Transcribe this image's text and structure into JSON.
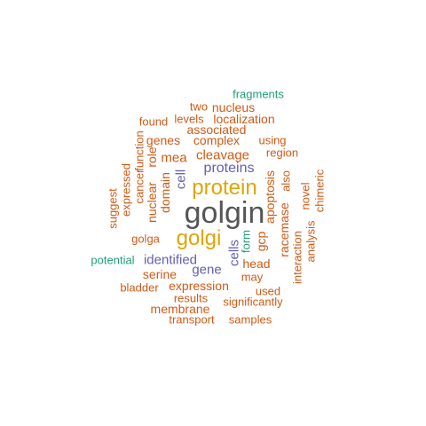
{
  "palette": {
    "gray": "#555555",
    "gold": "#E0A500",
    "purple": "#6360AE",
    "orange": "#D05A14",
    "green": "#1E9E78"
  },
  "words": [
    {
      "text": "golgin",
      "color": "gray"
    },
    {
      "text": "protein",
      "color": "gold"
    },
    {
      "text": "golgi",
      "color": "gold"
    },
    {
      "text": "proteins",
      "color": "purple"
    },
    {
      "text": "identified",
      "color": "purple"
    },
    {
      "text": "gene",
      "color": "purple"
    },
    {
      "text": "cells",
      "color": "purple"
    },
    {
      "text": "cell",
      "color": "purple"
    },
    {
      "text": "fragments",
      "color": "green"
    },
    {
      "text": "potential",
      "color": "green"
    },
    {
      "text": "form",
      "color": "green"
    },
    {
      "text": "two",
      "color": "orange"
    },
    {
      "text": "nucleus",
      "color": "orange"
    },
    {
      "text": "levels",
      "color": "orange"
    },
    {
      "text": "localization",
      "color": "orange"
    },
    {
      "text": "found",
      "color": "orange"
    },
    {
      "text": "associated",
      "color": "orange"
    },
    {
      "text": "genes",
      "color": "orange"
    },
    {
      "text": "complex",
      "color": "orange"
    },
    {
      "text": "using",
      "color": "orange"
    },
    {
      "text": "mea",
      "color": "orange"
    },
    {
      "text": "cleavage",
      "color": "orange"
    },
    {
      "text": "region",
      "color": "orange"
    },
    {
      "text": "golga",
      "color": "orange"
    },
    {
      "text": "head",
      "color": "orange"
    },
    {
      "text": "may",
      "color": "orange"
    },
    {
      "text": "serine",
      "color": "orange"
    },
    {
      "text": "expression",
      "color": "orange"
    },
    {
      "text": "bladder",
      "color": "orange"
    },
    {
      "text": "used",
      "color": "orange"
    },
    {
      "text": "results",
      "color": "orange"
    },
    {
      "text": "significantly",
      "color": "orange"
    },
    {
      "text": "membrane",
      "color": "orange"
    },
    {
      "text": "transport",
      "color": "orange"
    },
    {
      "text": "samples",
      "color": "orange"
    },
    {
      "text": "suggest",
      "color": "orange"
    },
    {
      "text": "expressed",
      "color": "orange"
    },
    {
      "text": "cancer",
      "color": "orange"
    },
    {
      "text": "function",
      "color": "orange"
    },
    {
      "text": "role",
      "color": "orange"
    },
    {
      "text": "nuclear",
      "color": "orange"
    },
    {
      "text": "domain",
      "color": "orange"
    },
    {
      "text": "gcp",
      "color": "orange"
    },
    {
      "text": "apoptosis",
      "color": "orange"
    },
    {
      "text": "racemase",
      "color": "orange"
    },
    {
      "text": "interaction",
      "color": "orange"
    },
    {
      "text": "also",
      "color": "orange"
    },
    {
      "text": "analysis",
      "color": "orange"
    },
    {
      "text": "novel",
      "color": "orange"
    },
    {
      "text": "chimeric",
      "color": "orange"
    }
  ]
}
